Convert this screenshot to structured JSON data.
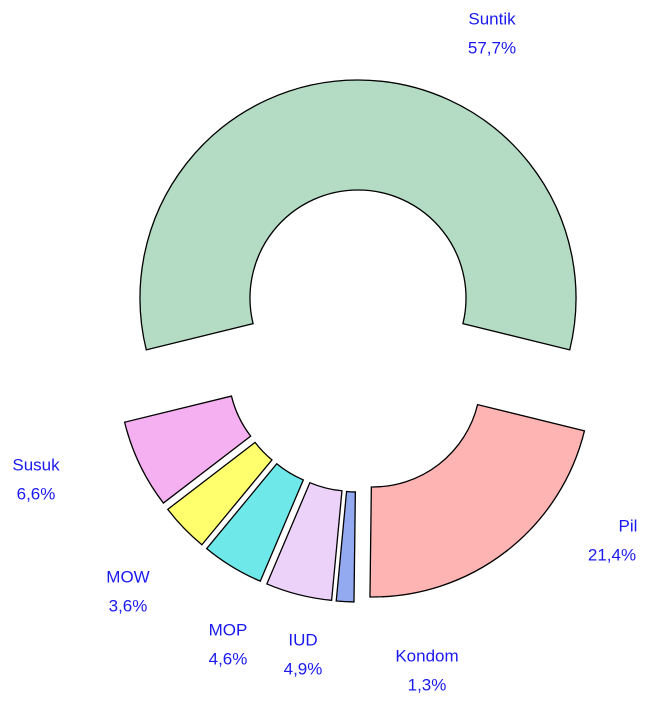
{
  "chart_data": {
    "type": "donut",
    "categories": [
      "Suntik",
      "Pil",
      "Kondom",
      "IUD",
      "MOP",
      "MOW",
      "Susuk"
    ],
    "values": [
      57.7,
      21.4,
      1.3,
      4.9,
      4.6,
      3.6,
      6.6
    ],
    "value_labels": [
      "57,7%",
      "21,4%",
      "1,3%",
      "4,9%",
      "4,6%",
      "3,6%",
      "6,6%"
    ],
    "colors": [
      "#b4dcc4",
      "#ffb4b4",
      "#94aaf0",
      "#ecd2f8",
      "#6ee8e8",
      "#ffff6e",
      "#f4b0f0"
    ]
  }
}
